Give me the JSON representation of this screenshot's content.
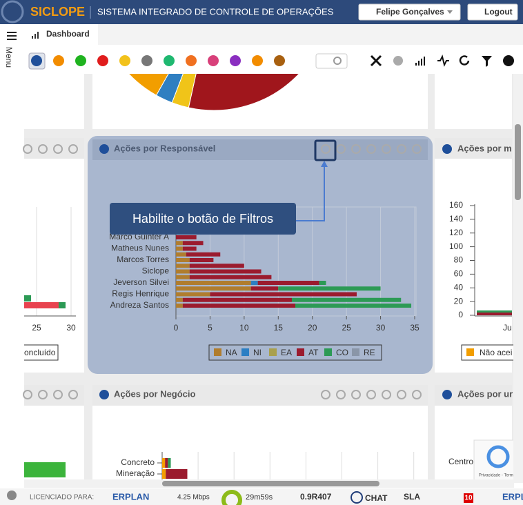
{
  "header": {
    "brand": "SICLOPE",
    "title": "SISTEMA INTEGRADO DE CONTROLE DE OPERAÇÕES",
    "user": "Felipe Gonçalves",
    "logout": "Logout"
  },
  "sidebar": {
    "menu": "Menu"
  },
  "tab": "Dashboard",
  "callout": "Habilite o botão de Filtros",
  "panels": {
    "responsavel": "Ações por Responsável",
    "right_top": "Ações por m",
    "negocio": "Ações por Negócio",
    "right_bottom": "Ações por ur"
  },
  "pie_chart": {
    "type": "pie",
    "values": [
      53,
      2,
      2,
      28
    ],
    "colors": [
      "#a0161c",
      "#f0c419",
      "#2f7fc1",
      "#f29e00"
    ]
  },
  "chart_data": {
    "type": "bar",
    "orientation": "horizontal",
    "stacked": true,
    "categories": [
      "Marco Guinter A",
      null,
      "Matheus Nunes",
      null,
      "Marcos Torres",
      null,
      "Siclope",
      null,
      "Jeverson Silvei",
      null,
      "Regis Henrique",
      null,
      "Andreza Santos"
    ],
    "series": [
      {
        "name": "NA",
        "color": "#b07d2e",
        "values": [
          0,
          1,
          1,
          1.5,
          2,
          2,
          2,
          2,
          11,
          11,
          5,
          1,
          1
        ]
      },
      {
        "name": "NI",
        "color": "#2c7fc4",
        "values": [
          0,
          0,
          0,
          0,
          0,
          0,
          0,
          0,
          1,
          0,
          0,
          0,
          0
        ]
      },
      {
        "name": "EA",
        "color": "#a9a04d",
        "values": [
          0,
          0,
          0,
          0,
          0,
          0,
          0,
          0,
          0,
          0,
          0,
          0,
          0
        ]
      },
      {
        "name": "AT",
        "color": "#9b1b2e",
        "values": [
          3,
          3,
          2,
          5,
          3.5,
          8,
          10.5,
          12,
          9,
          4,
          21.5,
          16,
          16.5
        ]
      },
      {
        "name": "CO",
        "color": "#2c9a55",
        "values": [
          0,
          0,
          0,
          0,
          0,
          0,
          0,
          0,
          1,
          15,
          0,
          16,
          17
        ]
      },
      {
        "name": "RE",
        "color": "#8a96a8",
        "values": [
          0,
          0,
          0,
          0,
          0,
          0,
          0,
          0,
          0,
          0,
          0,
          0,
          0
        ]
      }
    ],
    "xlim": [
      0,
      35
    ],
    "xticks": [
      0,
      5,
      10,
      15,
      20,
      25,
      30,
      35
    ],
    "grid": true,
    "legend": "bottom"
  },
  "left_chart": {
    "type": "bar",
    "orientation": "horizontal",
    "xlim": [
      0,
      30
    ],
    "xticks": [
      25,
      30
    ],
    "legend": "oncluído",
    "series": [
      {
        "color": "#2c9a55",
        "values": [
          24.2,
          1
        ]
      },
      {
        "color": "#e8434f",
        "values": [
          0,
          28.2
        ]
      }
    ]
  },
  "right_chart": {
    "type": "bar",
    "categories": [
      "Ju"
    ],
    "ylim": [
      0,
      160
    ],
    "yticks": [
      0,
      20,
      40,
      60,
      80,
      100,
      120,
      140,
      160
    ],
    "legend": "Não acei",
    "legend_color": "#f29e00",
    "series": [
      {
        "color": "#9b1b2e",
        "values": [
          4
        ]
      },
      {
        "color": "#2c9a55",
        "values": [
          3
        ]
      }
    ]
  },
  "bottom_chart": {
    "type": "bar",
    "orientation": "horizontal",
    "categories": [
      "Concreto",
      "Mineração"
    ],
    "xlim": [
      0,
      35
    ],
    "series": [
      {
        "color": "#f29e00",
        "values": [
          0.4,
          0.5
        ]
      },
      {
        "color": "#9b1b2e",
        "values": [
          0.4,
          3
        ]
      },
      {
        "color": "#2c9a55",
        "values": [
          0.4,
          0
        ]
      }
    ]
  },
  "bottom_left_chart": {
    "type": "bar",
    "xlim": [
      0,
      30
    ],
    "values": [
      29.2
    ],
    "color": "#3cb43c"
  },
  "bottom_right": {
    "category": "Centro"
  },
  "recaptcha": "Privacidade - Termos",
  "footer": {
    "licensed": "LICENCIADO PARA:",
    "company": "ERPLAN",
    "speed": "4.25 Mbps",
    "timer": "29m59s",
    "version": "0.9R407",
    "chat": "CHAT",
    "sla": "SLA",
    "count": "10",
    "company_short": "ERPL"
  }
}
